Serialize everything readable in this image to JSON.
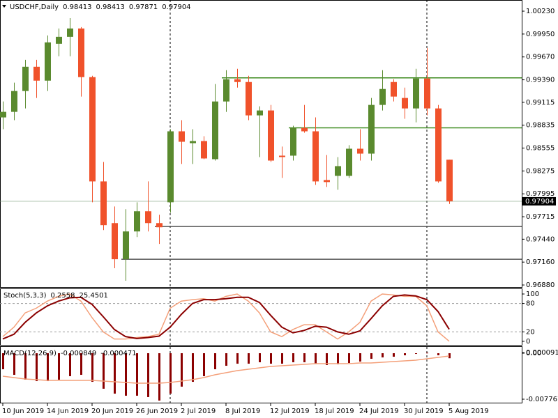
{
  "chart_data": [
    {
      "type": "candlestick",
      "title": "USDCHF,Daily",
      "categories": [
        "10 Jun 2019",
        null,
        null,
        null,
        "14 Jun 2019",
        null,
        null,
        null,
        "20 Jun 2019",
        null,
        null,
        null,
        "26 Jun 2019",
        null,
        null,
        null,
        "2 Jul 2019",
        null,
        null,
        null,
        "8 Jul 2019",
        null,
        null,
        null,
        "12 Jul 2019",
        null,
        null,
        null,
        "18 Jul 2019",
        null,
        null,
        null,
        "24 Jul 2019",
        null,
        null,
        null,
        "30 Jul 2019",
        null,
        null,
        null,
        "5 Aug 2019"
      ],
      "open": [
        0.9893,
        0.98998,
        0.99253,
        0.9955,
        0.9938,
        0.99831,
        0.99916,
        1.00018,
        0.99423,
        0.98147,
        0.97637,
        0.97195,
        0.97535,
        0.97782,
        0.97637,
        0.97892,
        0.9876,
        0.98615,
        0.98641,
        0.98419,
        0.99125,
        0.99397,
        0.99363,
        0.98955,
        0.99015,
        0.98462,
        0.98462,
        0.98802,
        0.9876,
        0.98164,
        0.98215,
        0.98215,
        0.98547,
        0.98487,
        0.99083,
        0.99363,
        0.99168,
        0.9904,
        0.99406,
        0.9904,
        0.98413
      ],
      "high": [
        0.99125,
        0.99355,
        0.99635,
        0.99635,
        0.99933,
        1.00018,
        1.00145,
        1.00035,
        0.9944,
        0.98385,
        0.97841,
        0.97807,
        0.97892,
        0.98147,
        0.97739,
        0.98785,
        0.98896,
        0.98785,
        0.987,
        0.99338,
        0.99508,
        0.99525,
        0.9944,
        0.99066,
        0.99083,
        0.98573,
        0.98828,
        0.99083,
        0.9893,
        0.9847,
        0.98445,
        0.9859,
        0.98785,
        0.99168,
        0.99508,
        0.99397,
        0.99295,
        0.99525,
        0.9978,
        0.99083,
        0.98413
      ],
      "low": [
        0.98785,
        0.98896,
        0.9904,
        0.99168,
        0.99253,
        0.99678,
        0.99678,
        0.99185,
        0.97892,
        0.97552,
        0.97085,
        0.96932,
        0.97467,
        0.97535,
        0.97382,
        0.97765,
        0.9836,
        0.9836,
        0.98419,
        0.98402,
        0.98998,
        0.99295,
        0.98896,
        0.98445,
        0.98385,
        0.9819,
        0.98402,
        0.98743,
        0.98105,
        0.98079,
        0.98045,
        0.9819,
        0.98402,
        0.98402,
        0.99015,
        0.99125,
        0.98913,
        0.9887,
        0.98955,
        0.9813,
        0.97871
      ],
      "close": [
        0.98998,
        0.99253,
        0.9955,
        0.9938,
        0.99848,
        0.99916,
        1.00018,
        0.99423,
        0.98147,
        0.97612,
        0.97195,
        0.97535,
        0.97782,
        0.97637,
        0.97586,
        0.9876,
        0.98632,
        0.98641,
        0.98428,
        0.99125,
        0.99397,
        0.99363,
        0.98955,
        0.99015,
        0.98402,
        0.98445,
        0.98802,
        0.9876,
        0.98147,
        0.98139,
        0.98334,
        0.98547,
        0.98487,
        0.99083,
        0.99278,
        0.99185,
        0.9904,
        0.99406,
        0.9904,
        0.98147,
        0.97904
      ],
      "up_color": "#5a8a2e",
      "down_color": "#f0522b",
      "levels": [
        {
          "value": 0.99414,
          "color": "#3d8a1e"
        },
        {
          "value": 0.98802,
          "color": "#3d8a1e"
        },
        {
          "value": 0.97595,
          "color": "#555555"
        },
        {
          "value": 0.97195,
          "color": "#555555"
        }
      ],
      "ylim": [
        0.96855,
        1.00358
      ],
      "yticks": [
        {
          "value": 1.0023,
          "label": "1.00230"
        },
        {
          "value": 0.9995,
          "label": "0.99950"
        },
        {
          "value": 0.9967,
          "label": "0.99670"
        },
        {
          "value": 0.9939,
          "label": "0.99390"
        },
        0.99115,
        0.98835,
        0.98555,
        0.98275,
        0.97995,
        0.97715,
        {
          "value": 0.9744,
          "label": "0.97440"
        },
        {
          "value": 0.9716,
          "label": "0.97160"
        },
        {
          "value": 0.9688,
          "label": "0.96880"
        }
      ]
    },
    {
      "type": "line",
      "title": "Stoch(5,3,3)",
      "series": [
        {
          "color": "#f4a07a",
          "values": [
            10,
            30,
            60,
            70,
            85,
            95,
            100,
            85,
            50,
            20,
            5,
            5,
            8,
            10,
            15,
            70,
            85,
            88,
            90,
            85,
            95,
            100,
            85,
            60,
            20,
            10,
            25,
            35,
            35,
            20,
            5,
            20,
            40,
            85,
            100,
            98,
            95,
            95,
            75,
            20,
            0.2558
          ]
        },
        {
          "color": "#8b0000",
          "values": [
            5,
            15,
            40,
            60,
            75,
            85,
            92,
            93,
            78,
            52,
            25,
            10,
            6,
            8,
            11,
            30,
            57,
            80,
            88,
            88,
            90,
            93,
            93,
            82,
            55,
            30,
            18,
            23,
            32,
            30,
            20,
            15,
            22,
            48,
            75,
            95,
            98,
            96,
            88,
            63,
            25.4501
          ]
        }
      ],
      "ylim": [
        -7.4,
        110.3
      ],
      "yticks": [
        100,
        80,
        20,
        0
      ]
    },
    {
      "type": "macd",
      "title": "MACD(12,26,9)",
      "series": [
        {
          "color": "#8b0000",
          "style": "bar",
          "values": [
            -0.00271,
            -0.00365,
            -0.00447,
            -0.00471,
            -0.00471,
            -0.00447,
            -0.00388,
            -0.00365,
            -0.00483,
            -0.006,
            -0.00683,
            -0.00718,
            -0.00718,
            -0.00741,
            -0.008,
            -0.00683,
            -0.00565,
            -0.00483,
            -0.00388,
            -0.00271,
            -0.00212,
            -0.00177,
            -0.00177,
            -0.00153,
            -0.00177,
            -0.00177,
            -0.00153,
            -0.00153,
            -0.00177,
            -0.002,
            -0.00188,
            -0.00165,
            -0.00141,
            -0.00094,
            -0.00071,
            -0.00059,
            -0.00035,
            -0.00012,
            9.1e-05,
            -0.00035,
            -0.000849
          ]
        },
        {
          "color": "#f4a07a",
          "style": "line",
          "values": [
            -0.00388,
            -0.00412,
            -0.00435,
            -0.00447,
            -0.00459,
            -0.00459,
            -0.00459,
            -0.00459,
            -0.00459,
            -0.00471,
            -0.00483,
            -0.00494,
            -0.00506,
            -0.00506,
            -0.00506,
            -0.00494,
            -0.00471,
            -0.00447,
            -0.00412,
            -0.00365,
            -0.0033,
            -0.00294,
            -0.00271,
            -0.00247,
            -0.00224,
            -0.00212,
            -0.002,
            -0.00188,
            -0.00177,
            -0.00177,
            -0.00177,
            -0.00177,
            -0.00165,
            -0.00165,
            -0.00153,
            -0.00141,
            -0.00129,
            -0.00118,
            -0.00094,
            -0.00071,
            -0.000471
          ]
        }
      ],
      "ylim": [
        -0.008356,
        0.00106
      ],
      "yticks": [
        9.1e-05,
        {
          "value": 0,
          "label": "0.00"
        },
        -0.007767
      ]
    }
  ]
}
